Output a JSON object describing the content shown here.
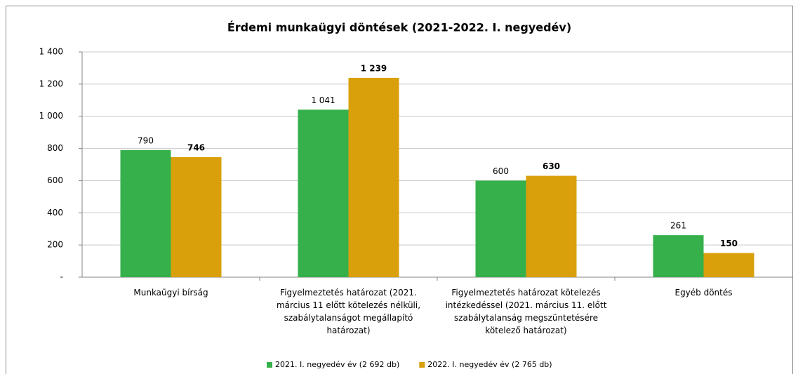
{
  "chart_data": {
    "type": "bar",
    "title": "Érdemi munkaügyi döntések (2021-2022. I. negyedév)",
    "categories": [
      "Munkaügyi bírság",
      "Figyelmeztetés határozat (2021. március 11 előtt kötelezés nélküli, szabálytalanságot megállapító határozat)",
      "Figyelmeztetés határozat kötelezés intézkedéssel  (2021. március 11. előtt szabálytalanság megszüntetésére kötelező határozat)",
      "Egyéb döntés"
    ],
    "series": [
      {
        "name": "2021. I. negyedév év (2 692 db)",
        "color": "#35b04a",
        "values": [
          790,
          1041,
          600,
          261
        ],
        "value_labels": [
          "790",
          "1 041",
          "600",
          "261"
        ]
      },
      {
        "name": "2022. I. negyedév év (2 765 db)",
        "color": "#d9a00b",
        "values": [
          746,
          1239,
          630,
          150
        ],
        "value_labels": [
          "746",
          "1 239",
          "630",
          "150"
        ]
      }
    ],
    "ylim": [
      0,
      1400
    ],
    "yticks": [
      {
        "value": 0,
        "label": "-"
      },
      200,
      400,
      600,
      800,
      {
        "value": 1000,
        "label": "1 000"
      },
      {
        "value": 1200,
        "label": "1 200"
      },
      {
        "value": 1400,
        "label": "1 400"
      }
    ],
    "grid": true,
    "legend": "bottom"
  }
}
